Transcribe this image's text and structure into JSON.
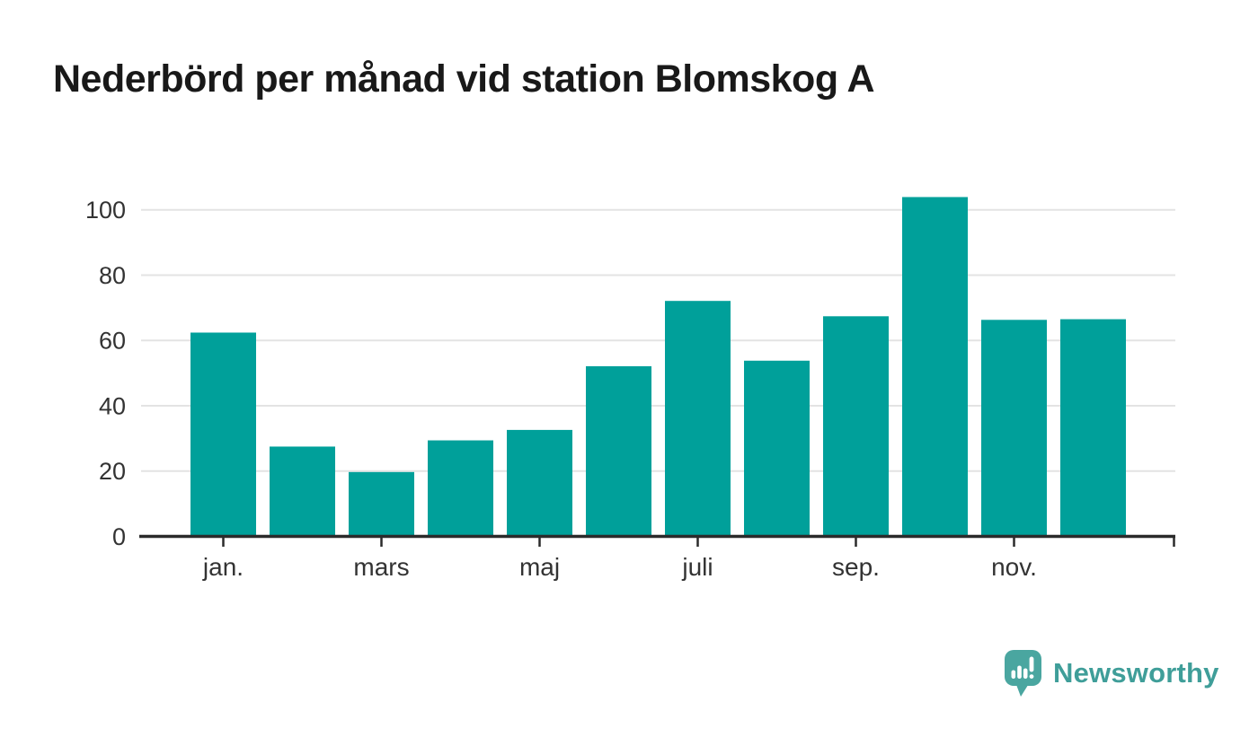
{
  "header": {
    "title": "Nederbörd per månad vid station Blomskog A",
    "title_color": "#191919"
  },
  "chart_data": {
    "type": "bar",
    "title": "Nederbörd per månad vid station Blomskog A",
    "categories": [
      "jan.",
      "feb.",
      "mars",
      "apr.",
      "maj",
      "juni",
      "juli",
      "aug.",
      "sep.",
      "okt.",
      "nov.",
      "dec."
    ],
    "values": [
      62.4,
      27.5,
      19.7,
      29.4,
      32.6,
      52.1,
      72.1,
      53.8,
      67.4,
      103.9,
      66.3,
      66.5
    ],
    "visible_x_tick_labels": [
      "jan.",
      "mars",
      "maj",
      "juli",
      "sep.",
      "nov."
    ],
    "visible_x_tick_indices": [
      0,
      2,
      4,
      6,
      8,
      10
    ],
    "xlabel": "",
    "ylabel": "",
    "y_ticks": [
      0,
      20,
      40,
      60,
      80,
      100
    ],
    "ylim": [
      0,
      110
    ],
    "grid": true,
    "legend": false,
    "bar_color": "#00a09a",
    "gridline_color": "#e3e3e3",
    "axis_color": "#2b2b2b",
    "tick_label_color": "#333333"
  },
  "footer": {
    "brand": "Newsworthy",
    "brand_color": "#3f9e99",
    "mark_color": "#4aa6a0",
    "mark_glyph_color": "#ffffff",
    "logo_icon": "speech-bubble-bar-chart-icon"
  }
}
